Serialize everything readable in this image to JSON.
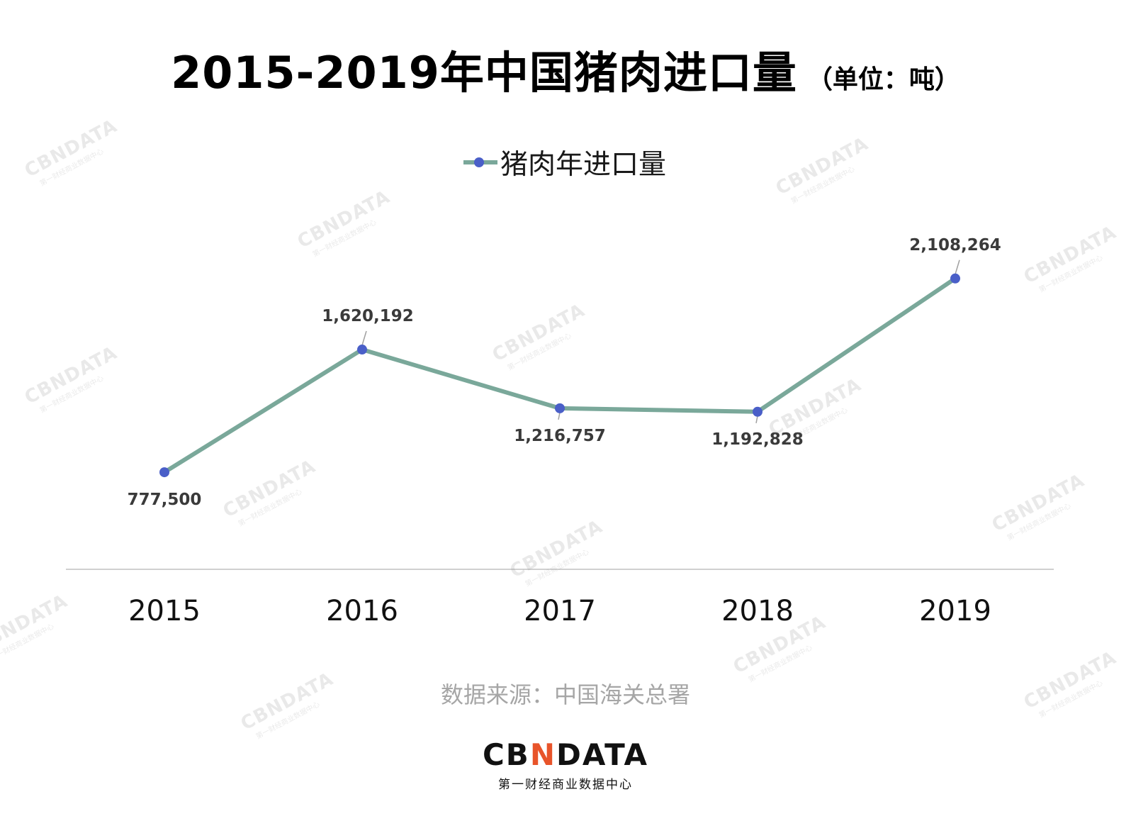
{
  "title": "2015-2019年中国猪肉进口量",
  "title_unit": "（单位：吨）",
  "source": "数据来源：中国海关总署",
  "brand": {
    "logo_part1": "CB",
    "logo_part2": "N",
    "logo_part3": "DATA",
    "subtitle": "第一财经商业数据中心"
  },
  "watermark": {
    "logo": "CBNDATA",
    "subtitle": "第一财经商业数据中心"
  },
  "colors": {
    "line": "#7aa89a",
    "marker": "#4a5fc8",
    "axis": "#d0d0d0",
    "label": "#3a3a3a",
    "brand_accent": "#e8542a"
  },
  "chart_data": {
    "type": "line",
    "x": [
      "2015",
      "2016",
      "2017",
      "2018",
      "2019"
    ],
    "series": [
      {
        "name": "猪肉年进口量",
        "values": [
          777500,
          1620192,
          1216757,
          1192828,
          2108264
        ],
        "labels": [
          "777,500",
          "1,620,192",
          "1,216,757",
          "1,192,828",
          "2,108,264"
        ],
        "label_positions": [
          "below",
          "above",
          "below",
          "below",
          "above"
        ]
      }
    ],
    "legend_position": "top-center",
    "grid": false,
    "ylim": [
      0,
      2250000
    ],
    "xlabel": "",
    "ylabel": ""
  }
}
